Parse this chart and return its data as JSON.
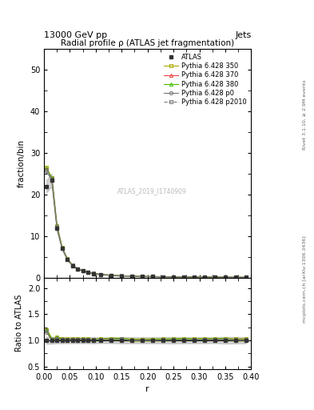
{
  "title": "Radial profile ρ (ATLAS jet fragmentation)",
  "top_left_label": "13000 GeV pp",
  "top_right_label": "Jets",
  "ylabel_main": "fraction/bin",
  "ylabel_ratio": "Ratio to ATLAS",
  "xlabel": "r",
  "watermark": "ATLAS_2019_I1740909",
  "right_label1": "Rivet 3.1.10, ≥ 2.9M events",
  "right_label2": "mcplots.cern.ch [arXiv:1306.3436]",
  "r_centers": [
    0.005,
    0.015,
    0.025,
    0.035,
    0.045,
    0.055,
    0.065,
    0.075,
    0.085,
    0.095,
    0.11,
    0.13,
    0.15,
    0.17,
    0.19,
    0.21,
    0.23,
    0.25,
    0.27,
    0.29,
    0.31,
    0.33,
    0.35,
    0.37,
    0.39
  ],
  "atlas_data": [
    22.0,
    23.5,
    11.8,
    7.0,
    4.4,
    2.9,
    2.1,
    1.6,
    1.25,
    1.0,
    0.75,
    0.55,
    0.42,
    0.35,
    0.28,
    0.24,
    0.205,
    0.18,
    0.155,
    0.138,
    0.122,
    0.108,
    0.095,
    0.082,
    0.068
  ],
  "atlas_err": [
    1.5,
    1.5,
    0.7,
    0.4,
    0.25,
    0.16,
    0.12,
    0.09,
    0.07,
    0.06,
    0.04,
    0.03,
    0.025,
    0.02,
    0.016,
    0.014,
    0.012,
    0.011,
    0.009,
    0.008,
    0.007,
    0.006,
    0.006,
    0.005,
    0.004
  ],
  "py350_data": [
    26.5,
    24.0,
    12.5,
    7.2,
    4.5,
    3.0,
    2.15,
    1.65,
    1.28,
    1.02,
    0.77,
    0.57,
    0.435,
    0.355,
    0.285,
    0.245,
    0.21,
    0.185,
    0.16,
    0.142,
    0.126,
    0.111,
    0.098,
    0.084,
    0.07
  ],
  "py370_data": [
    26.3,
    23.9,
    12.45,
    7.18,
    4.48,
    2.98,
    2.14,
    1.64,
    1.27,
    1.01,
    0.765,
    0.565,
    0.432,
    0.352,
    0.283,
    0.243,
    0.208,
    0.183,
    0.158,
    0.14,
    0.124,
    0.11,
    0.097,
    0.083,
    0.069
  ],
  "py380_data": [
    26.4,
    24.1,
    12.48,
    7.19,
    4.49,
    2.99,
    2.145,
    1.645,
    1.275,
    1.015,
    0.768,
    0.568,
    0.434,
    0.354,
    0.284,
    0.244,
    0.209,
    0.184,
    0.159,
    0.141,
    0.125,
    0.111,
    0.098,
    0.083,
    0.069
  ],
  "pyp0_data": [
    25.5,
    23.5,
    11.9,
    7.05,
    4.42,
    2.92,
    2.11,
    1.62,
    1.26,
    1.005,
    0.758,
    0.558,
    0.428,
    0.348,
    0.28,
    0.24,
    0.206,
    0.181,
    0.156,
    0.139,
    0.123,
    0.109,
    0.096,
    0.082,
    0.068
  ],
  "pyp2010_data": [
    26.0,
    23.8,
    12.2,
    7.12,
    4.46,
    2.96,
    2.13,
    1.63,
    1.265,
    1.008,
    0.762,
    0.562,
    0.43,
    0.35,
    0.281,
    0.241,
    0.207,
    0.182,
    0.157,
    0.14,
    0.124,
    0.11,
    0.097,
    0.083,
    0.069
  ],
  "atlas_color": "#333333",
  "py350_color": "#aaaa00",
  "py370_color": "#ee4444",
  "py380_color": "#44bb00",
  "pyp0_color": "#777777",
  "pyp2010_color": "#777777",
  "ylim_main": [
    0,
    55
  ],
  "ylim_ratio": [
    0.45,
    2.2
  ],
  "yticks_main": [
    0,
    10,
    20,
    30,
    40,
    50
  ],
  "yticks_ratio": [
    0.5,
    1.0,
    1.5,
    2.0
  ],
  "xlim": [
    0.0,
    0.4
  ]
}
